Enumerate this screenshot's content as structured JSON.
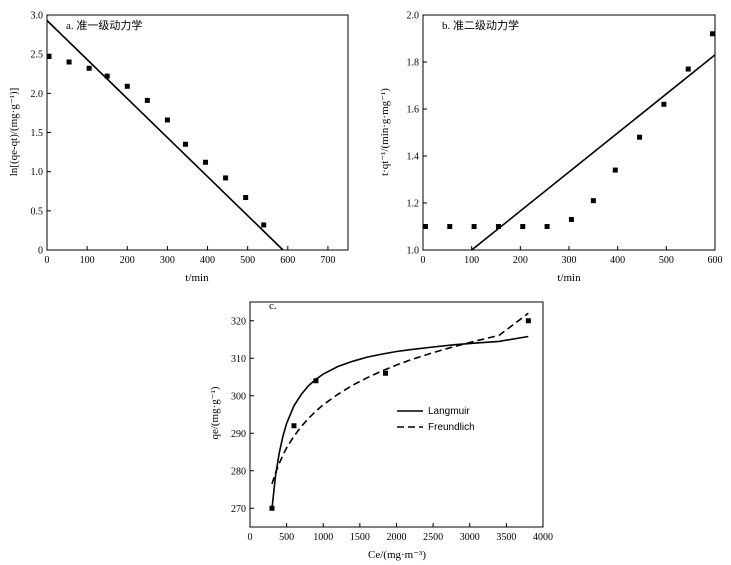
{
  "chart_data": [
    {
      "id": "a",
      "type": "scatter",
      "title": "a. 准一级动力学",
      "xlabel": "t/min",
      "ylabel": "ln[(qe-qt)/(mg·g⁻¹)]",
      "xlim": [
        0,
        750
      ],
      "ylim": [
        0,
        3.0
      ],
      "xticks": [
        0,
        100,
        200,
        300,
        400,
        500,
        600,
        700
      ],
      "yticks": [
        0,
        0.5,
        1.0,
        1.5,
        2.0,
        2.5,
        3.0
      ],
      "ytick_labels": [
        "0",
        "0.5",
        "1.0",
        "1.5",
        "2.0",
        "2.5",
        "3.0"
      ],
      "grid": false,
      "series": [
        {
          "kind": "points",
          "x": [
            5,
            55,
            105,
            150,
            200,
            250,
            300,
            345,
            395,
            445,
            495,
            540
          ],
          "y": [
            2.47,
            2.4,
            2.32,
            2.22,
            2.09,
            1.91,
            1.66,
            1.35,
            1.12,
            0.92,
            0.67,
            0.32
          ]
        },
        {
          "kind": "fit_line",
          "x": [
            0,
            588
          ],
          "y": [
            2.93,
            0
          ]
        }
      ]
    },
    {
      "id": "b",
      "type": "scatter",
      "title": "b. 准二级动力学",
      "xlabel": "t/min",
      "ylabel": "t·qt⁻¹/(min·g·mg⁻¹)",
      "xlim": [
        0,
        600
      ],
      "ylim": [
        1.0,
        2.0
      ],
      "xticks": [
        0,
        100,
        200,
        300,
        400,
        500,
        600
      ],
      "yticks": [
        1.0,
        1.2,
        1.4,
        1.6,
        1.8,
        2.0
      ],
      "ytick_labels": [
        "1.0",
        "1.2",
        "1.4",
        "1.6",
        "1.8",
        "2.0"
      ],
      "grid": false,
      "series": [
        {
          "kind": "points",
          "x": [
            5,
            55,
            105,
            155,
            205,
            255,
            305,
            350,
            395,
            445,
            495,
            545,
            595
          ],
          "y": [
            1.1,
            1.1,
            1.1,
            1.1,
            1.1,
            1.1,
            1.13,
            1.21,
            1.34,
            1.48,
            1.62,
            1.77,
            1.92
          ]
        },
        {
          "kind": "fit_line",
          "x": [
            100,
            600
          ],
          "y": [
            1.0,
            1.83
          ]
        }
      ]
    },
    {
      "id": "c",
      "type": "line",
      "title": "c.",
      "xlabel": "Ce/(mg·m⁻³)",
      "ylabel": "qe/(mg·g⁻¹)",
      "xlim": [
        0,
        4000
      ],
      "ylim": [
        265,
        325
      ],
      "xticks": [
        0,
        500,
        1000,
        1500,
        2000,
        2500,
        3000,
        3500,
        4000
      ],
      "yticks": [
        270,
        280,
        290,
        300,
        310,
        320
      ],
      "ytick_labels": [
        "270",
        "280",
        "290",
        "300",
        "310",
        "320"
      ],
      "grid": false,
      "legend_position": "center-right",
      "points": {
        "x": [
          300,
          600,
          900,
          1850,
          3800
        ],
        "y": [
          270,
          292,
          304,
          306,
          320
        ]
      },
      "series": [
        {
          "name": "Langmuir",
          "style": "solid",
          "x": [
            300,
            350,
            400,
            450,
            500,
            600,
            700,
            800,
            900,
            1000,
            1200,
            1400,
            1600,
            1800,
            2000,
            2200,
            2500,
            2800,
            3100,
            3400,
            3800
          ],
          "y": [
            270,
            278.8,
            284.8,
            289.3,
            292.6,
            297.3,
            300.4,
            302.7,
            304.4,
            305.8,
            307.8,
            309.2,
            310.3,
            311.1,
            311.8,
            312.3,
            313.0,
            313.6,
            314.1,
            314.5,
            315.8
          ]
        },
        {
          "name": "Freundlich",
          "style": "dashed",
          "x": [
            300,
            350,
            400,
            450,
            500,
            600,
            700,
            800,
            900,
            1000,
            1200,
            1400,
            1600,
            1800,
            2000,
            2200,
            2500,
            2800,
            3100,
            3400,
            3800
          ],
          "y": [
            276.5,
            279.5,
            282.0,
            284.2,
            286.1,
            289.2,
            291.8,
            294.0,
            295.9,
            297.6,
            300.4,
            302.8,
            304.8,
            306.6,
            308.2,
            309.6,
            311.5,
            313.2,
            314.7,
            316.1,
            322
          ]
        }
      ]
    }
  ]
}
